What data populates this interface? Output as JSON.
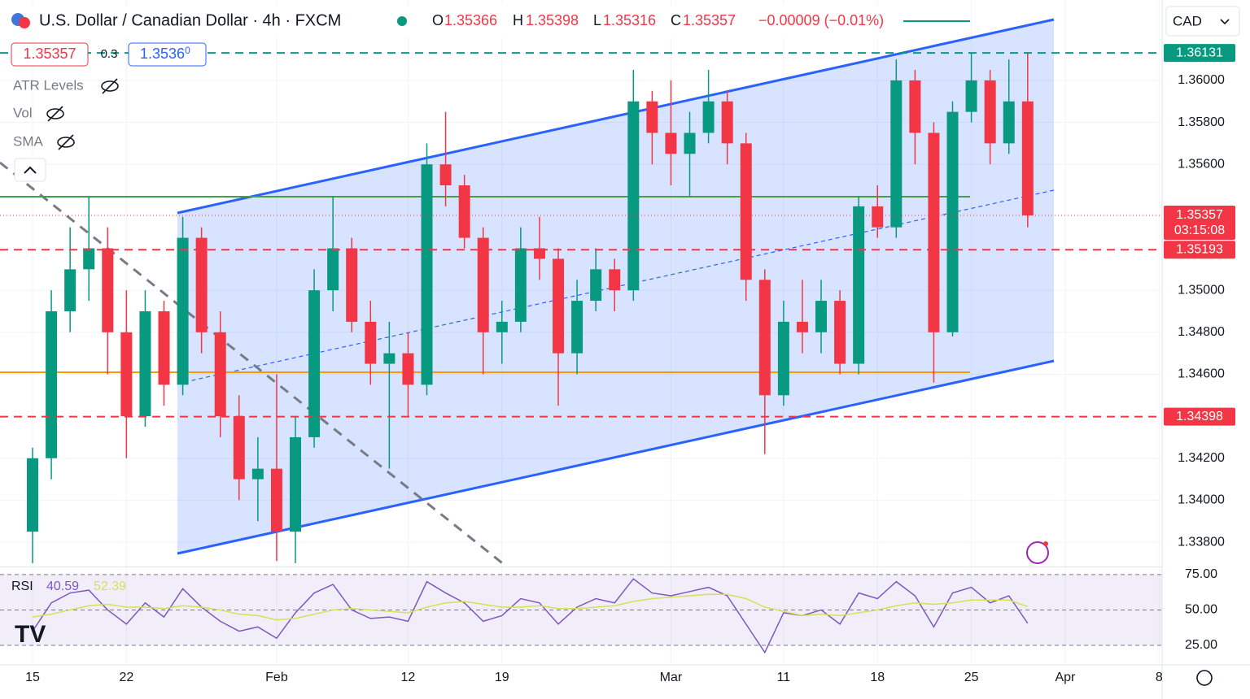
{
  "header": {
    "symbol": "U.S. Dollar / Canadian Dollar · 4h · FXCM",
    "o_key": "O",
    "open": "1.35366",
    "h_key": "H",
    "high": "1.35398",
    "l_key": "L",
    "low": "1.35316",
    "c_key": "C",
    "close": "1.35357",
    "change": "−0.00009 (−0.01%)",
    "bid": "1.35357",
    "spread": "0.3",
    "ask": "1.3536",
    "ask_fraction": "0",
    "currency": "CAD"
  },
  "indicators": [
    "ATR Levels",
    "Vol",
    "SMA"
  ],
  "chart_data": [
    {
      "type": "candlestick",
      "up_color": "#089981",
      "down_color": "#f23645",
      "x": [
        0,
        1,
        2,
        3,
        4,
        5,
        6,
        7,
        8,
        9,
        10,
        11,
        12,
        13,
        14,
        15,
        16,
        17,
        18,
        19,
        20,
        21,
        22,
        23,
        24,
        25,
        26,
        27,
        28,
        29,
        30,
        31,
        32,
        33,
        34,
        35,
        36,
        37,
        38,
        39,
        40,
        41,
        42,
        43,
        44,
        45,
        46,
        47,
        48,
        49,
        50,
        51,
        52,
        53
      ],
      "open": [
        1.3385,
        1.342,
        1.349,
        1.351,
        1.352,
        1.348,
        1.344,
        1.349,
        1.3455,
        1.3525,
        1.348,
        1.344,
        1.341,
        1.3415,
        1.3385,
        1.343,
        1.35,
        1.352,
        1.3485,
        1.3465,
        1.347,
        1.3455,
        1.356,
        1.355,
        1.3525,
        1.348,
        1.3485,
        1.352,
        1.3515,
        1.347,
        1.3495,
        1.351,
        1.35,
        1.359,
        1.3575,
        1.3565,
        1.3575,
        1.359,
        1.357,
        1.3505,
        1.345,
        1.3485,
        1.348,
        1.3495,
        1.3465,
        1.354,
        1.353,
        1.36,
        1.3575,
        1.348,
        1.3585,
        1.36,
        1.357,
        1.359
      ],
      "high": [
        1.3425,
        1.35,
        1.353,
        1.3545,
        1.353,
        1.35,
        1.35,
        1.3495,
        1.3535,
        1.353,
        1.349,
        1.345,
        1.343,
        1.346,
        1.344,
        1.351,
        1.3545,
        1.3525,
        1.3495,
        1.3485,
        1.348,
        1.357,
        1.3585,
        1.3555,
        1.353,
        1.3495,
        1.353,
        1.3535,
        1.352,
        1.3505,
        1.352,
        1.3515,
        1.3605,
        1.3595,
        1.36,
        1.3585,
        1.3605,
        1.3595,
        1.3575,
        1.351,
        1.3495,
        1.3505,
        1.3505,
        1.35,
        1.3545,
        1.355,
        1.361,
        1.3605,
        1.358,
        1.359,
        1.3613,
        1.3605,
        1.361,
        1.3613
      ],
      "low": [
        1.337,
        1.341,
        1.348,
        1.3495,
        1.346,
        1.342,
        1.3435,
        1.3445,
        1.345,
        1.347,
        1.343,
        1.34,
        1.339,
        1.3371,
        1.337,
        1.3425,
        1.349,
        1.348,
        1.3455,
        1.3415,
        1.344,
        1.345,
        1.354,
        1.352,
        1.346,
        1.3465,
        1.348,
        1.3505,
        1.3445,
        1.346,
        1.349,
        1.349,
        1.3495,
        1.356,
        1.355,
        1.3545,
        1.357,
        1.356,
        1.3495,
        1.3422,
        1.3445,
        1.347,
        1.347,
        1.346,
        1.346,
        1.3525,
        1.3525,
        1.356,
        1.3456,
        1.3478,
        1.358,
        1.356,
        1.3565,
        1.353
      ],
      "close": [
        1.342,
        1.349,
        1.351,
        1.352,
        1.348,
        1.344,
        1.349,
        1.3455,
        1.3525,
        1.348,
        1.344,
        1.341,
        1.3415,
        1.3385,
        1.343,
        1.35,
        1.352,
        1.3485,
        1.3465,
        1.347,
        1.3455,
        1.356,
        1.355,
        1.3525,
        1.348,
        1.3485,
        1.352,
        1.3515,
        1.347,
        1.3495,
        1.351,
        1.35,
        1.359,
        1.3575,
        1.3565,
        1.3575,
        1.359,
        1.357,
        1.3505,
        1.345,
        1.3485,
        1.348,
        1.3495,
        1.3465,
        1.354,
        1.353,
        1.36,
        1.3575,
        1.348,
        1.3585,
        1.36,
        1.357,
        1.359,
        1.35357
      ],
      "countdown": "03:15:08",
      "levels": [
        1.36131,
        1.35193,
        1.34398
      ],
      "level_colors": [
        "#089981",
        "#f23645",
        "#f23645"
      ],
      "xlim": [
        -1.734,
        60.16
      ],
      "ylim": [
        1.33684,
        1.36383
      ],
      "xticks": [
        {
          "value": 0,
          "label": "15"
        },
        {
          "value": 5,
          "label": "22"
        },
        {
          "value": 13,
          "label": "Feb"
        },
        {
          "value": 20,
          "label": "12"
        },
        {
          "value": 25,
          "label": "19"
        },
        {
          "value": 34,
          "label": "Mar"
        },
        {
          "value": 40,
          "label": "11"
        },
        {
          "value": 45,
          "label": "18"
        },
        {
          "value": 50,
          "label": "25"
        },
        {
          "value": 55,
          "label": "Apr"
        },
        {
          "value": 60,
          "label": "8"
        }
      ],
      "yticks": [
        {
          "value": 1.338,
          "label": "1.33800"
        },
        {
          "value": 1.34,
          "label": "1.34000"
        },
        {
          "value": 1.342,
          "label": "1.34200"
        },
        {
          "value": 1.346,
          "label": "1.34600"
        },
        {
          "value": 1.348,
          "label": "1.34800"
        },
        {
          "value": 1.35,
          "label": "1.35000"
        },
        {
          "value": 1.356,
          "label": "1.35600"
        },
        {
          "value": 1.358,
          "label": "1.35800"
        },
        {
          "value": 1.36,
          "label": "1.36000"
        }
      ],
      "grid": true
    },
    {
      "type": "line",
      "title": "RSI",
      "x": [
        0,
        1,
        2,
        3,
        4,
        5,
        6,
        7,
        8,
        9,
        10,
        11,
        12,
        13,
        14,
        15,
        16,
        17,
        18,
        19,
        20,
        21,
        22,
        23,
        24,
        25,
        26,
        27,
        28,
        29,
        30,
        31,
        32,
        33,
        34,
        35,
        36,
        37,
        38,
        39,
        40,
        41,
        42,
        43,
        44,
        45,
        46,
        47,
        48,
        49,
        50,
        51,
        52,
        53
      ],
      "series": [
        {
          "color": "#7e57c2",
          "values": [
            35,
            55,
            62,
            64,
            50,
            40,
            55,
            45,
            65,
            52,
            42,
            35,
            38,
            30,
            48,
            62,
            68,
            50,
            44,
            45,
            42,
            70,
            62,
            55,
            42,
            46,
            58,
            55,
            40,
            52,
            58,
            55,
            72,
            62,
            60,
            63,
            66,
            60,
            40,
            20,
            48,
            46,
            50,
            40,
            62,
            58,
            70,
            60,
            38,
            62,
            66,
            55,
            60,
            40.59
          ]
        },
        {
          "color": "#d4e157",
          "values": [
            45,
            47,
            50,
            53,
            54,
            52,
            52,
            51,
            53,
            52,
            50,
            47,
            46,
            43,
            44,
            47,
            50,
            51,
            50,
            49,
            48,
            52,
            55,
            56,
            54,
            52,
            52,
            53,
            51,
            51,
            52,
            53,
            56,
            58,
            59,
            60,
            61,
            61,
            58,
            52,
            49,
            46,
            47,
            46,
            48,
            50,
            53,
            55,
            54,
            55,
            57,
            57,
            57,
            52.39
          ]
        }
      ],
      "xlim": [
        -1.734,
        60.16
      ],
      "ylim": [
        11.2,
        80.7
      ],
      "yticks": [
        {
          "value": 25,
          "label": "25.00"
        },
        {
          "value": 50,
          "label": "50.00"
        },
        {
          "value": 75,
          "label": "75.00"
        }
      ]
    }
  ]
}
